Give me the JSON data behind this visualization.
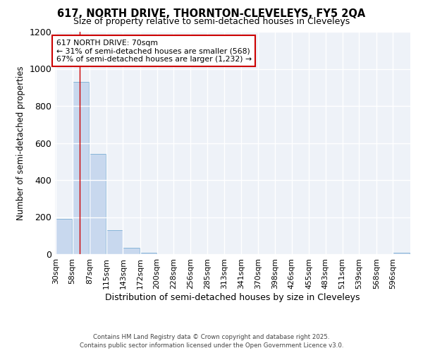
{
  "title1": "617, NORTH DRIVE, THORNTON-CLEVELEYS, FY5 2QA",
  "title2": "Size of property relative to semi-detached houses in Cleveleys",
  "xlabel": "Distribution of semi-detached houses by size in Cleveleys",
  "ylabel": "Number of semi-detached properties",
  "bar_color": "#c8d8ee",
  "bar_edge_color": "#7aaed4",
  "bins": [
    "30sqm",
    "58sqm",
    "87sqm",
    "115sqm",
    "143sqm",
    "172sqm",
    "200sqm",
    "228sqm",
    "256sqm",
    "285sqm",
    "313sqm",
    "341sqm",
    "370sqm",
    "398sqm",
    "426sqm",
    "455sqm",
    "483sqm",
    "511sqm",
    "539sqm",
    "568sqm",
    "596sqm"
  ],
  "values": [
    190,
    930,
    540,
    130,
    35,
    8,
    0,
    0,
    0,
    0,
    0,
    0,
    0,
    0,
    0,
    0,
    0,
    0,
    0,
    0,
    8
  ],
  "bin_width": 28,
  "bin_starts": [
    30,
    58,
    87,
    115,
    143,
    172,
    200,
    228,
    256,
    285,
    313,
    341,
    370,
    398,
    426,
    455,
    483,
    511,
    539,
    568,
    596
  ],
  "red_line_x": 70,
  "annotation_line1": "617 NORTH DRIVE: 70sqm",
  "annotation_line2": "← 31% of semi-detached houses are smaller (568)",
  "annotation_line3": "67% of semi-detached houses are larger (1,232) →",
  "annotation_box_color": "#ffffff",
  "annotation_edge_color": "#cc0000",
  "red_line_color": "#cc0000",
  "ylim": [
    0,
    1200
  ],
  "yticks": [
    0,
    200,
    400,
    600,
    800,
    1000,
    1200
  ],
  "bg_color": "#eef2f8",
  "fig_color": "#ffffff",
  "grid_color": "#ffffff",
  "footer": "Contains HM Land Registry data © Crown copyright and database right 2025.\nContains public sector information licensed under the Open Government Licence v3.0."
}
